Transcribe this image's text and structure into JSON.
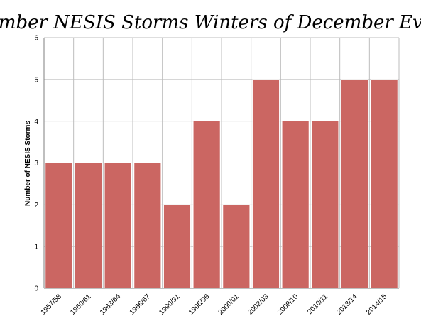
{
  "chart_data": {
    "type": "bar",
    "title": "Number NESIS Storms Winters of December Events",
    "xlabel": "",
    "ylabel": "Number of NESIS Storms",
    "categories": [
      "1957/58",
      "1960/61",
      "1963/64",
      "1966/67",
      "1990/91",
      "1995/96",
      "2000/01",
      "2002/03",
      "2009/10",
      "2010/11",
      "2013/14",
      "2014/15"
    ],
    "values": [
      3,
      3,
      3,
      3,
      2,
      4,
      2,
      5,
      4,
      4,
      5,
      5
    ],
    "ylim": [
      0,
      6
    ],
    "yticks": [
      "0",
      "1",
      "2",
      "3",
      "4",
      "5",
      "6"
    ],
    "grid": "on (horizontal and vertical)",
    "legend": "none",
    "bar_color": "#cb6662",
    "bar_edge_color": "#ffffff",
    "gridline_color": "#bdbdbd"
  }
}
